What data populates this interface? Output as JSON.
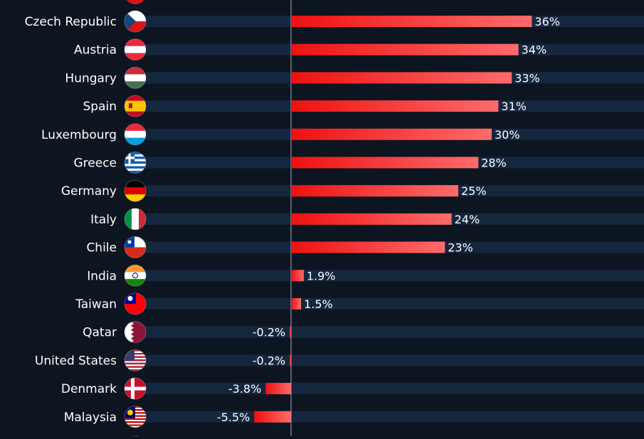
{
  "chart_data": {
    "type": "bar",
    "orientation": "horizontal",
    "categories": [
      "Czech Republic",
      "Austria",
      "Hungary",
      "Spain",
      "Luxembourg",
      "Greece",
      "Germany",
      "Italy",
      "Chile",
      "India",
      "Taiwan",
      "Qatar",
      "United States",
      "Denmark",
      "Malaysia"
    ],
    "values": [
      36,
      34,
      33,
      31,
      30,
      28,
      25,
      24,
      23,
      1.9,
      1.5,
      -0.2,
      -0.2,
      -3.8,
      -5.5
    ],
    "value_labels": [
      "36%",
      "34%",
      "33%",
      "31%",
      "30%",
      "28%",
      "25%",
      "24%",
      "23%",
      "1.9%",
      "1.5%",
      "-0.2%",
      "-0.2%",
      "-3.8%",
      "-5.5%"
    ],
    "flag_icons": [
      "flag-czech-republic-icon",
      "flag-austria-icon",
      "flag-hungary-icon",
      "flag-spain-icon",
      "flag-luxembourg-icon",
      "flag-greece-icon",
      "flag-germany-icon",
      "flag-italy-icon",
      "flag-chile-icon",
      "flag-india-icon",
      "flag-taiwan-icon",
      "flag-qatar-icon",
      "flag-united-states-icon",
      "flag-denmark-icon",
      "flag-malaysia-icon"
    ],
    "xlim": [
      -7.5,
      40.6
    ],
    "grid": false,
    "colors": {
      "background": "#0d1520",
      "track": "#15273f",
      "bar_start": "#ee1111",
      "bar_end": "#ff6b6b",
      "zero_line": "#8a94a0",
      "text": "#ffffff"
    }
  }
}
